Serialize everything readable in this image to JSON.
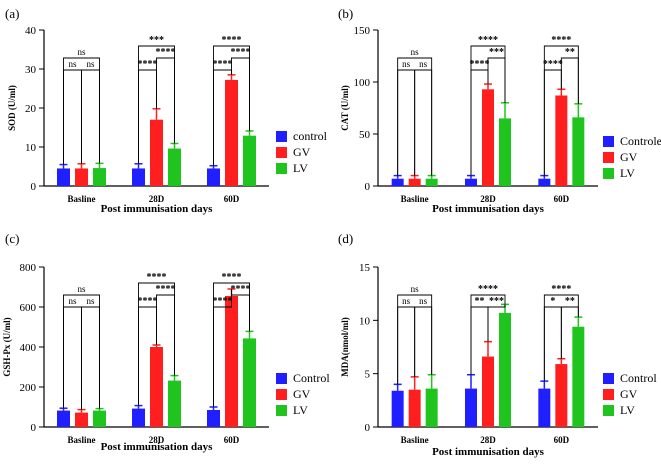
{
  "chart_data": [
    {
      "type": "bar",
      "panel_label": "(a)",
      "ylabel": "SOD (U/ml)",
      "xlabel": "Post immunisation days",
      "categories": [
        "Basline",
        "28D",
        "60D"
      ],
      "ylim": [
        0,
        40
      ],
      "yticks": [
        0,
        10,
        20,
        30,
        40
      ],
      "legend": [
        "control",
        "GV",
        "LV"
      ],
      "series": [
        {
          "name": "control",
          "color": "#1f1fff",
          "values": [
            4.5,
            4.5,
            4.5
          ],
          "errors": [
            1.0,
            1.2,
            0.7
          ]
        },
        {
          "name": "GV",
          "color": "#ff1f1f",
          "values": [
            4.5,
            17.0,
            27.2
          ],
          "errors": [
            1.2,
            2.8,
            1.3
          ]
        },
        {
          "name": "LV",
          "color": "#1fc41f",
          "values": [
            4.6,
            9.6,
            12.9
          ],
          "errors": [
            1.2,
            1.3,
            1.2
          ]
        }
      ],
      "annotations": [
        {
          "category": 0,
          "pair": [
            0,
            1
          ],
          "label": "ns",
          "level": 1
        },
        {
          "category": 0,
          "pair": [
            1,
            2
          ],
          "label": "ns",
          "level": 1
        },
        {
          "category": 0,
          "pair": [
            0,
            2
          ],
          "label": "ns",
          "level": 2
        },
        {
          "category": 1,
          "pair": [
            0,
            1
          ],
          "label": "****",
          "level": 1
        },
        {
          "category": 1,
          "pair": [
            1,
            2
          ],
          "label": "****",
          "level": 2
        },
        {
          "category": 1,
          "pair": [
            0,
            2
          ],
          "label": "***",
          "level": 3
        },
        {
          "category": 2,
          "pair": [
            0,
            1
          ],
          "label": "****",
          "level": 1
        },
        {
          "category": 2,
          "pair": [
            1,
            2
          ],
          "label": "****",
          "level": 2
        },
        {
          "category": 2,
          "pair": [
            0,
            2
          ],
          "label": "****",
          "level": 3
        }
      ]
    },
    {
      "type": "bar",
      "panel_label": "(b)",
      "ylabel": "CAT (U/ml)",
      "xlabel": "Post immunisation days",
      "categories": [
        "Basline",
        "28D",
        "60D"
      ],
      "ylim": [
        0,
        150
      ],
      "yticks": [
        0,
        50,
        100,
        150
      ],
      "legend": [
        "Controle",
        "GV",
        "LV"
      ],
      "series": [
        {
          "name": "Controle",
          "color": "#1f1fff",
          "values": [
            7,
            7,
            7
          ],
          "errors": [
            3,
            3,
            3
          ]
        },
        {
          "name": "GV",
          "color": "#ff1f1f",
          "values": [
            7,
            93,
            87
          ],
          "errors": [
            3,
            5,
            6
          ]
        },
        {
          "name": "LV",
          "color": "#1fc41f",
          "values": [
            7,
            65,
            66
          ],
          "errors": [
            3,
            15,
            13
          ]
        }
      ],
      "annotations": [
        {
          "category": 0,
          "pair": [
            0,
            1
          ],
          "label": "ns",
          "level": 1
        },
        {
          "category": 0,
          "pair": [
            1,
            2
          ],
          "label": "ns",
          "level": 1
        },
        {
          "category": 0,
          "pair": [
            0,
            2
          ],
          "label": "ns",
          "level": 2
        },
        {
          "category": 1,
          "pair": [
            0,
            1
          ],
          "label": "****",
          "level": 1
        },
        {
          "category": 1,
          "pair": [
            1,
            2
          ],
          "label": "***",
          "level": 2
        },
        {
          "category": 1,
          "pair": [
            0,
            2
          ],
          "label": "****",
          "level": 3
        },
        {
          "category": 2,
          "pair": [
            0,
            1
          ],
          "label": "****",
          "level": 1
        },
        {
          "category": 2,
          "pair": [
            1,
            2
          ],
          "label": "**",
          "level": 2
        },
        {
          "category": 2,
          "pair": [
            0,
            2
          ],
          "label": "****",
          "level": 3
        }
      ]
    },
    {
      "type": "bar",
      "panel_label": "(c)",
      "ylabel": "GSH-Px (U/ml)",
      "xlabel": "Post immunisation days",
      "categories": [
        "Basline",
        "28D",
        "60D"
      ],
      "ylim": [
        0,
        800
      ],
      "yticks": [
        0,
        200,
        400,
        600,
        800
      ],
      "legend": [
        "Control",
        "GV",
        "LV"
      ],
      "series": [
        {
          "name": "Control",
          "color": "#1f1fff",
          "values": [
            82,
            92,
            85
          ],
          "errors": [
            12,
            15,
            15
          ]
        },
        {
          "name": "GV",
          "color": "#ff1f1f",
          "values": [
            72,
            400,
            655
          ],
          "errors": [
            15,
            10,
            35
          ]
        },
        {
          "name": "LV",
          "color": "#1fc41f",
          "values": [
            82,
            232,
            443
          ],
          "errors": [
            10,
            25,
            35
          ]
        }
      ],
      "annotations": [
        {
          "category": 0,
          "pair": [
            0,
            1
          ],
          "label": "ns",
          "level": 1
        },
        {
          "category": 0,
          "pair": [
            1,
            2
          ],
          "label": "ns",
          "level": 1
        },
        {
          "category": 0,
          "pair": [
            0,
            2
          ],
          "label": "ns",
          "level": 2
        },
        {
          "category": 1,
          "pair": [
            0,
            1
          ],
          "label": "****",
          "level": 1
        },
        {
          "category": 1,
          "pair": [
            1,
            2
          ],
          "label": "****",
          "level": 2
        },
        {
          "category": 1,
          "pair": [
            0,
            2
          ],
          "label": "****",
          "level": 3
        },
        {
          "category": 2,
          "pair": [
            0,
            1
          ],
          "label": "****",
          "level": 1
        },
        {
          "category": 2,
          "pair": [
            1,
            2
          ],
          "label": "****",
          "level": 2
        },
        {
          "category": 2,
          "pair": [
            0,
            2
          ],
          "label": "****",
          "level": 3
        }
      ]
    },
    {
      "type": "bar",
      "panel_label": "(d)",
      "ylabel": "MDA(nmol/ml)",
      "xlabel": "Post immunisation days",
      "categories": [
        "Basline",
        "28D",
        "60D"
      ],
      "ylim": [
        0,
        15
      ],
      "yticks": [
        0,
        5,
        10,
        15
      ],
      "legend": [
        "Control",
        "GV",
        "LV"
      ],
      "series": [
        {
          "name": "Control",
          "color": "#1f1fff",
          "values": [
            3.4,
            3.6,
            3.6
          ],
          "errors": [
            0.6,
            1.3,
            0.7
          ]
        },
        {
          "name": "GV",
          "color": "#ff1f1f",
          "values": [
            3.5,
            6.6,
            5.9
          ],
          "errors": [
            1.2,
            1.4,
            0.5
          ]
        },
        {
          "name": "LV",
          "color": "#1fc41f",
          "values": [
            3.6,
            10.7,
            9.4
          ],
          "errors": [
            1.3,
            0.8,
            0.9
          ]
        }
      ],
      "annotations": [
        {
          "category": 0,
          "pair": [
            0,
            1
          ],
          "label": "ns",
          "level": 1
        },
        {
          "category": 0,
          "pair": [
            1,
            2
          ],
          "label": "ns",
          "level": 1
        },
        {
          "category": 0,
          "pair": [
            0,
            2
          ],
          "label": "ns",
          "level": 2
        },
        {
          "category": 1,
          "pair": [
            0,
            1
          ],
          "label": "**",
          "level": 1
        },
        {
          "category": 1,
          "pair": [
            1,
            2
          ],
          "label": "***",
          "level": 1
        },
        {
          "category": 1,
          "pair": [
            0,
            2
          ],
          "label": "****",
          "level": 2
        },
        {
          "category": 2,
          "pair": [
            0,
            1
          ],
          "label": "*",
          "level": 1
        },
        {
          "category": 2,
          "pair": [
            1,
            2
          ],
          "label": "**",
          "level": 1
        },
        {
          "category": 2,
          "pair": [
            0,
            2
          ],
          "label": "****",
          "level": 2
        }
      ]
    }
  ]
}
